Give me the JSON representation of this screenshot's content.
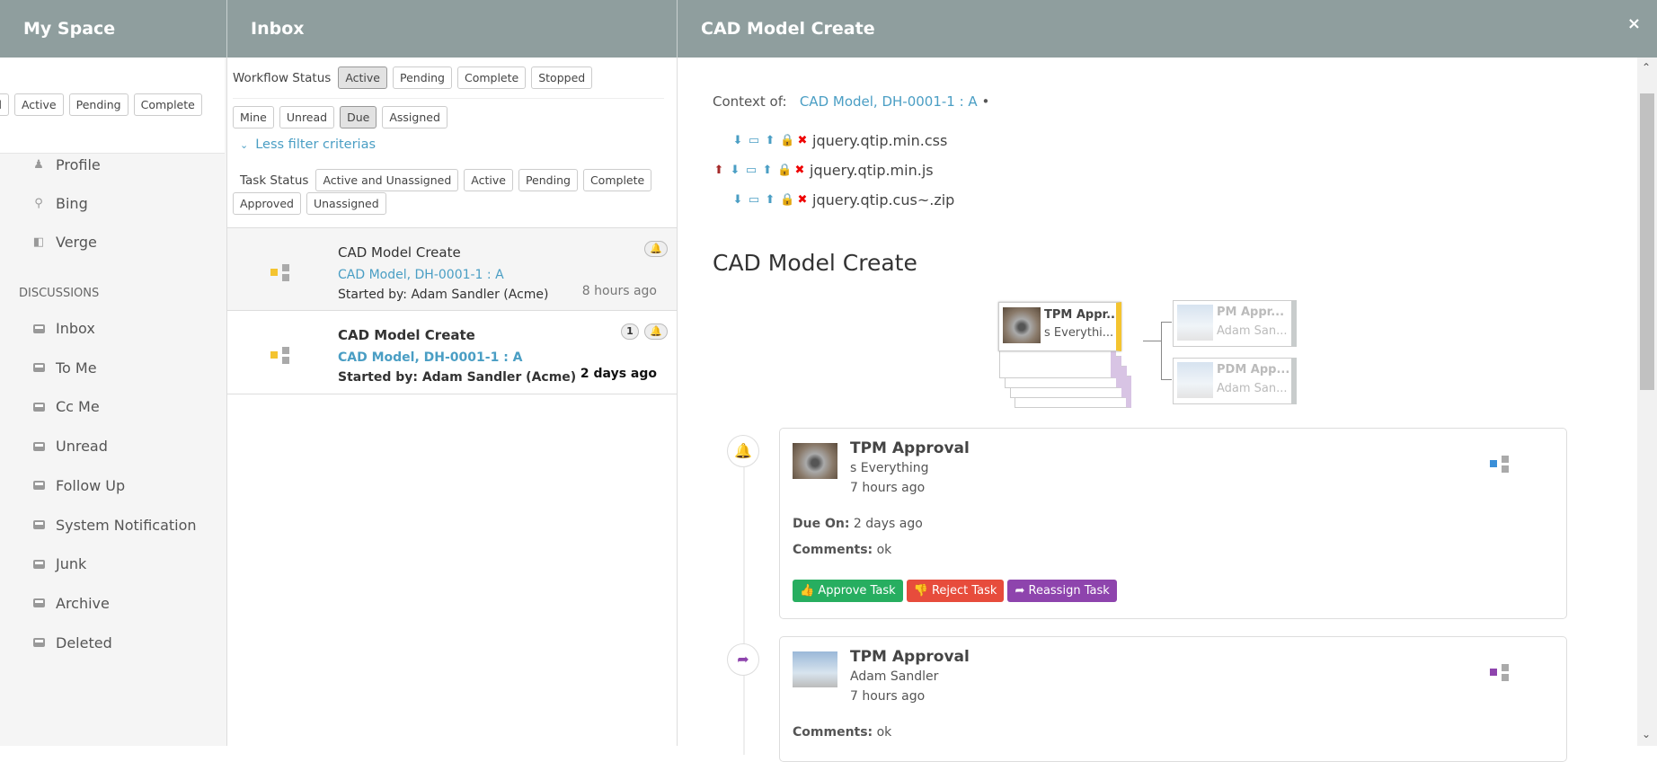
{
  "left": {
    "title": "My Space",
    "filters": [
      "d",
      "Active",
      "Pending",
      "Complete"
    ],
    "items": [
      {
        "label": "Profile",
        "icon": "user-icon"
      },
      {
        "label": "Bing",
        "icon": "search-icon"
      },
      {
        "label": "Verge",
        "icon": "external-link-icon"
      }
    ],
    "section": "DISCUSSIONS",
    "discussions": [
      "Inbox",
      "To Me",
      "Cc Me",
      "Unread",
      "Follow Up",
      "System Notification",
      "Junk",
      "Archive",
      "Deleted"
    ]
  },
  "inbox": {
    "title": "Inbox",
    "workflow_label": "Workflow Status",
    "workflow": [
      "Active",
      "Pending",
      "Complete",
      "Stopped"
    ],
    "quick": [
      "Mine",
      "Unread",
      "Due",
      "Assigned"
    ],
    "less": "Less filter criterias",
    "task_label": "Task Status",
    "task": [
      "Active and Unassigned",
      "Active",
      "Pending",
      "Complete",
      "Approved",
      "Unassigned"
    ],
    "list": [
      {
        "title": "CAD Model Create",
        "link": "CAD Model, DH-0001-1 : A",
        "started": "Started by: Adam Sandler (Acme)",
        "time": "8 hours ago"
      },
      {
        "title": "CAD Model Create",
        "link": "CAD Model, DH-0001-1 : A",
        "started": "Started by: Adam Sandler (Acme)",
        "time": "2 days ago",
        "count": "1"
      }
    ]
  },
  "detail": {
    "title": "CAD Model Create",
    "close": "×",
    "context_label": "Context of:",
    "context_link": "CAD Model, DH-0001-1 : A",
    "context_dot": "•",
    "files": [
      "jquery.qtip.min.css",
      "jquery.qtip.min.js",
      "jquery.qtip.cus~.zip"
    ],
    "heading": "CAD Model Create",
    "diagram": {
      "main": {
        "title": "TPM Appr...",
        "sub": "s Everythi..."
      },
      "next": [
        {
          "title": "PM Appr...",
          "sub": "Adam San..."
        },
        {
          "title": "PDM App...",
          "sub": "Adam San..."
        }
      ]
    },
    "cards": [
      {
        "title": "TPM Approval",
        "user": "s Everything",
        "time": "7 hours ago",
        "due_label": "Due On:",
        "due": "2 days ago",
        "comments_label": "Comments:",
        "comments": "ok",
        "accent": "#3a8fd8"
      },
      {
        "title": "TPM Approval",
        "user": "Adam Sandler",
        "time": "7 hours ago",
        "comments_label": "Comments:",
        "comments": "ok",
        "accent": "#8e44ad"
      }
    ],
    "actions": {
      "approve": "Approve Task",
      "reject": "Reject Task",
      "reassign": "Reassign Task"
    }
  },
  "colors": {
    "header": "#8f9e9e",
    "link": "#4a9ec4",
    "approve": "#27ae60",
    "reject": "#e74c3c",
    "reassign": "#8e44ad",
    "due": "#f4c430"
  }
}
